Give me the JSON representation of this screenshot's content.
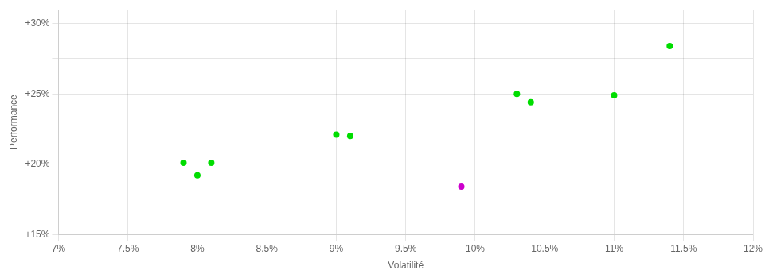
{
  "chart_data": {
    "type": "scatter",
    "x_label": "Volatilité",
    "y_label": "Performance",
    "xlim": [
      0.07,
      0.12
    ],
    "ylim": [
      0.15,
      0.31
    ],
    "xticks": [
      {
        "value": 0.07,
        "label": "7%"
      },
      {
        "value": 0.075,
        "label": "7.5%"
      },
      {
        "value": 0.08,
        "label": "8%"
      },
      {
        "value": 0.085,
        "label": "8.5%"
      },
      {
        "value": 0.09,
        "label": "9%"
      },
      {
        "value": 0.095,
        "label": "9.5%"
      },
      {
        "value": 0.1,
        "label": "10%"
      },
      {
        "value": 0.105,
        "label": "10.5%"
      },
      {
        "value": 0.11,
        "label": "11%"
      },
      {
        "value": 0.115,
        "label": "11.5%"
      },
      {
        "value": 0.12,
        "label": "12%"
      }
    ],
    "yticks": [
      {
        "value": 0.15,
        "label": "+15%"
      },
      {
        "value": 0.175,
        "label": null
      },
      {
        "value": 0.2,
        "label": "+20%"
      },
      {
        "value": 0.225,
        "label": null
      },
      {
        "value": 0.25,
        "label": "+25%"
      },
      {
        "value": 0.275,
        "label": null
      },
      {
        "value": 0.3,
        "label": "+30%"
      }
    ],
    "grid": true,
    "series": [
      {
        "color": "#00dd00",
        "x": [
          0.079,
          0.081,
          0.08,
          0.09,
          0.091,
          0.103,
          0.104,
          0.11,
          0.114
        ],
        "values": [
          0.201,
          0.201,
          0.192,
          0.221,
          0.22,
          0.25,
          0.244,
          0.249,
          0.284
        ]
      },
      {
        "color": "#cc00cc",
        "x": [
          0.099
        ],
        "values": [
          0.184
        ]
      }
    ]
  }
}
